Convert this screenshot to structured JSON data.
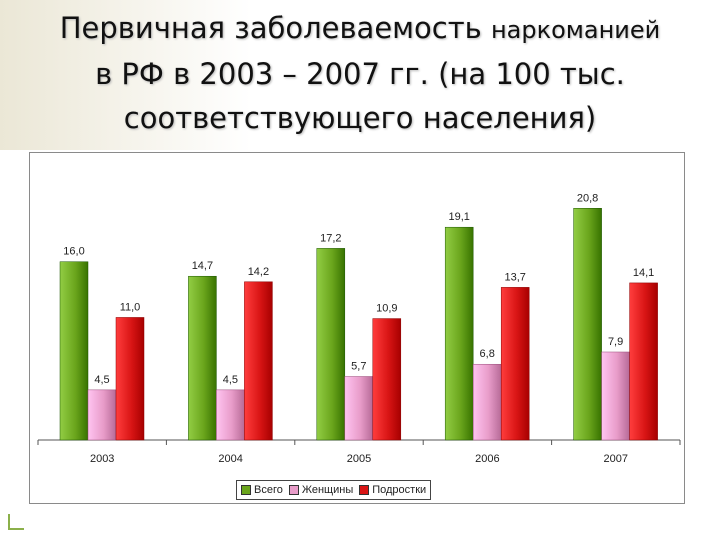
{
  "slide": {
    "title_line1_a": "Первичная заболеваемость",
    "title_line1_b": "наркоманией",
    "title_line2": "в РФ в 2003 – 2007 гг. (на 100 тыс.",
    "title_line3": "соответствующего населения)"
  },
  "chart_data": {
    "type": "bar",
    "title": "",
    "xlabel": "",
    "ylabel": "",
    "categories": [
      "2003",
      "2004",
      "2005",
      "2006",
      "2007"
    ],
    "series": [
      {
        "name": "Всего",
        "values": [
          16.0,
          14.7,
          17.2,
          19.1,
          20.8
        ],
        "labels": [
          "16,0",
          "14,7",
          "17,2",
          "19,1",
          "20,8"
        ],
        "color": "#6aa51c"
      },
      {
        "name": "Женщины",
        "values": [
          4.5,
          4.5,
          5.7,
          6.8,
          7.9
        ],
        "labels": [
          "4,5",
          "4,5",
          "5,7",
          "6,8",
          "7,9"
        ],
        "color": "#e89cc9"
      },
      {
        "name": "Подростки",
        "values": [
          11.0,
          14.2,
          10.9,
          13.7,
          14.1
        ],
        "labels": [
          "11,0",
          "14,2",
          "10,9",
          "13,7",
          "14,1"
        ],
        "color": "#d91515"
      }
    ],
    "ylim": [
      0,
      22
    ],
    "grid": false,
    "legend_position": "bottom"
  }
}
